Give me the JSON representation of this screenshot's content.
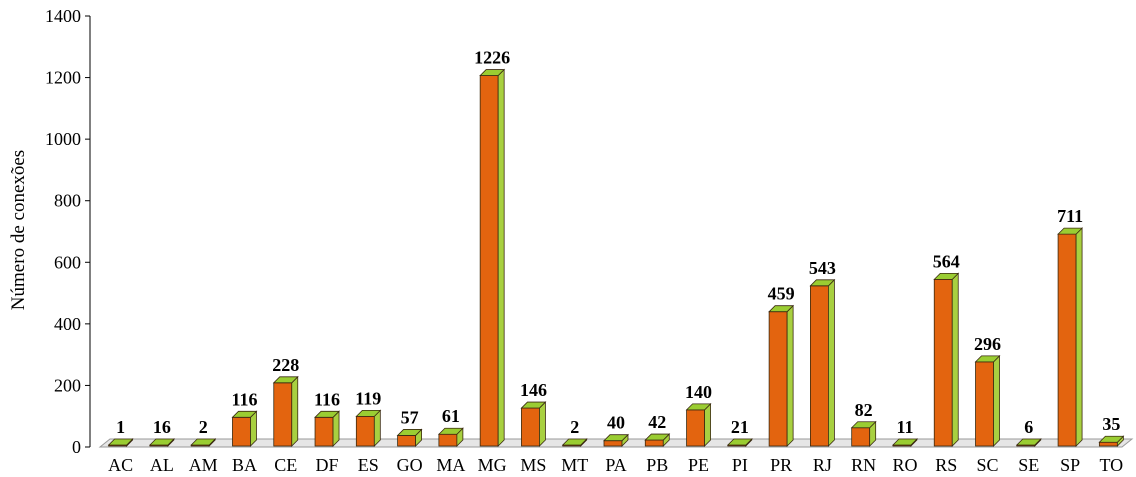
{
  "chart_data": {
    "type": "bar",
    "title": "",
    "xlabel": "",
    "ylabel": "Número de conexões",
    "ylim": [
      0,
      1400
    ],
    "yticks": [
      0,
      200,
      400,
      600,
      800,
      1000,
      1200,
      1400
    ],
    "grid": false,
    "legend": "none",
    "style": "3d",
    "categories": [
      "AC",
      "AL",
      "AM",
      "BA",
      "CE",
      "DF",
      "ES",
      "GO",
      "MA",
      "MG",
      "MS",
      "MT",
      "PA",
      "PB",
      "PE",
      "PI",
      "PR",
      "RJ",
      "RN",
      "RO",
      "RS",
      "SC",
      "SE",
      "SP",
      "TO"
    ],
    "values": [
      1,
      16,
      2,
      116,
      228,
      116,
      119,
      57,
      61,
      1226,
      146,
      2,
      40,
      42,
      140,
      21,
      459,
      543,
      82,
      11,
      564,
      296,
      6,
      711,
      35
    ],
    "data_labels": [
      "1",
      "16",
      "2",
      "116",
      "228",
      "116",
      "119",
      "57",
      "61",
      "1226",
      "146",
      "2",
      "40",
      "42",
      "140",
      "21",
      "459",
      "543",
      "82",
      "11",
      "564",
      "296",
      "6",
      "711",
      "35"
    ],
    "colors": {
      "bar_front": "#E3640F",
      "bar_top": "#9ACD32",
      "bar_side": "#A8D040",
      "floor": "#E6E6E6",
      "axis": "#000000"
    }
  }
}
